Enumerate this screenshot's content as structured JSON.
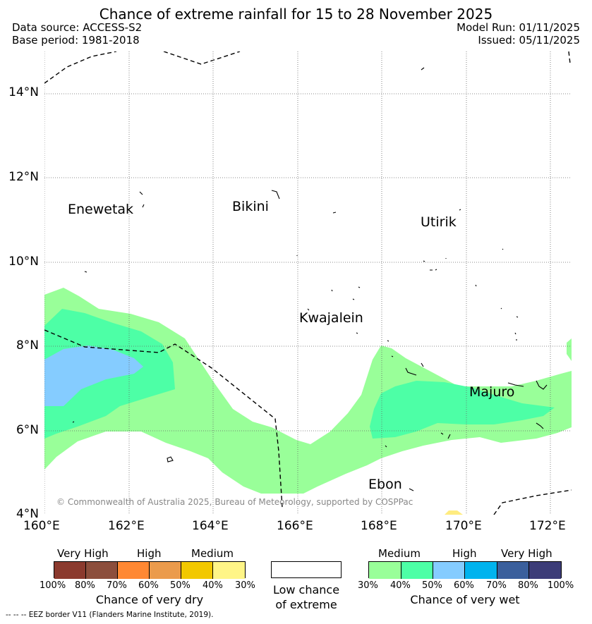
{
  "title": "Chance of extreme rainfall for 15 to 28 November 2025",
  "header": {
    "data_source": "Data source: ACCESS-S2",
    "base_period": "Base period: 1981-2018",
    "model_run": "Model Run: 01/11/2025",
    "issued": "Issued: 05/11/2025"
  },
  "map": {
    "lat_labels": [
      "14°N",
      "12°N",
      "10°N",
      "8°N",
      "6°N",
      "4°N"
    ],
    "lon_labels": [
      "160°E",
      "162°E",
      "164°E",
      "166°E",
      "168°E",
      "170°E",
      "172°E"
    ],
    "places": [
      "Enewetak",
      "Bikini",
      "Utirik",
      "Kwajalein",
      "Majuro",
      "Ebon"
    ],
    "copyright": "© Commonwealth of Australia 2025, Bureau of Meteorology, supported by COSPPac",
    "colors": {
      "wet_30_40": "#99ff99",
      "wet_40_50": "#4dffa6",
      "wet_50_60": "#85ccff",
      "dry_30_40": "#ffec80"
    }
  },
  "legend": {
    "dry": {
      "categories": [
        "Very High",
        "High",
        "Medium"
      ],
      "ticks": [
        "100%",
        "80%",
        "70%",
        "60%",
        "50%",
        "40%",
        "30%"
      ],
      "colors": [
        "#8b3a2e",
        "#8c4e3c",
        "#ff8833",
        "#eb9b4c",
        "#f2c800",
        "#fff587"
      ],
      "caption": "Chance of very dry"
    },
    "neutral": {
      "caption_line1": "Low chance",
      "caption_line2": "of extreme"
    },
    "wet": {
      "categories": [
        "Medium",
        "High",
        "Very High"
      ],
      "ticks": [
        "30%",
        "40%",
        "50%",
        "60%",
        "70%",
        "80%",
        "100%"
      ],
      "colors": [
        "#99ff99",
        "#4dffa6",
        "#85ccff",
        "#00b3ee",
        "#3a5f9c",
        "#3c3c78"
      ],
      "caption": "Chance of very wet"
    }
  },
  "footnote": "--  --  -- EEZ border V11 (Flanders Marine Institute, 2019)."
}
